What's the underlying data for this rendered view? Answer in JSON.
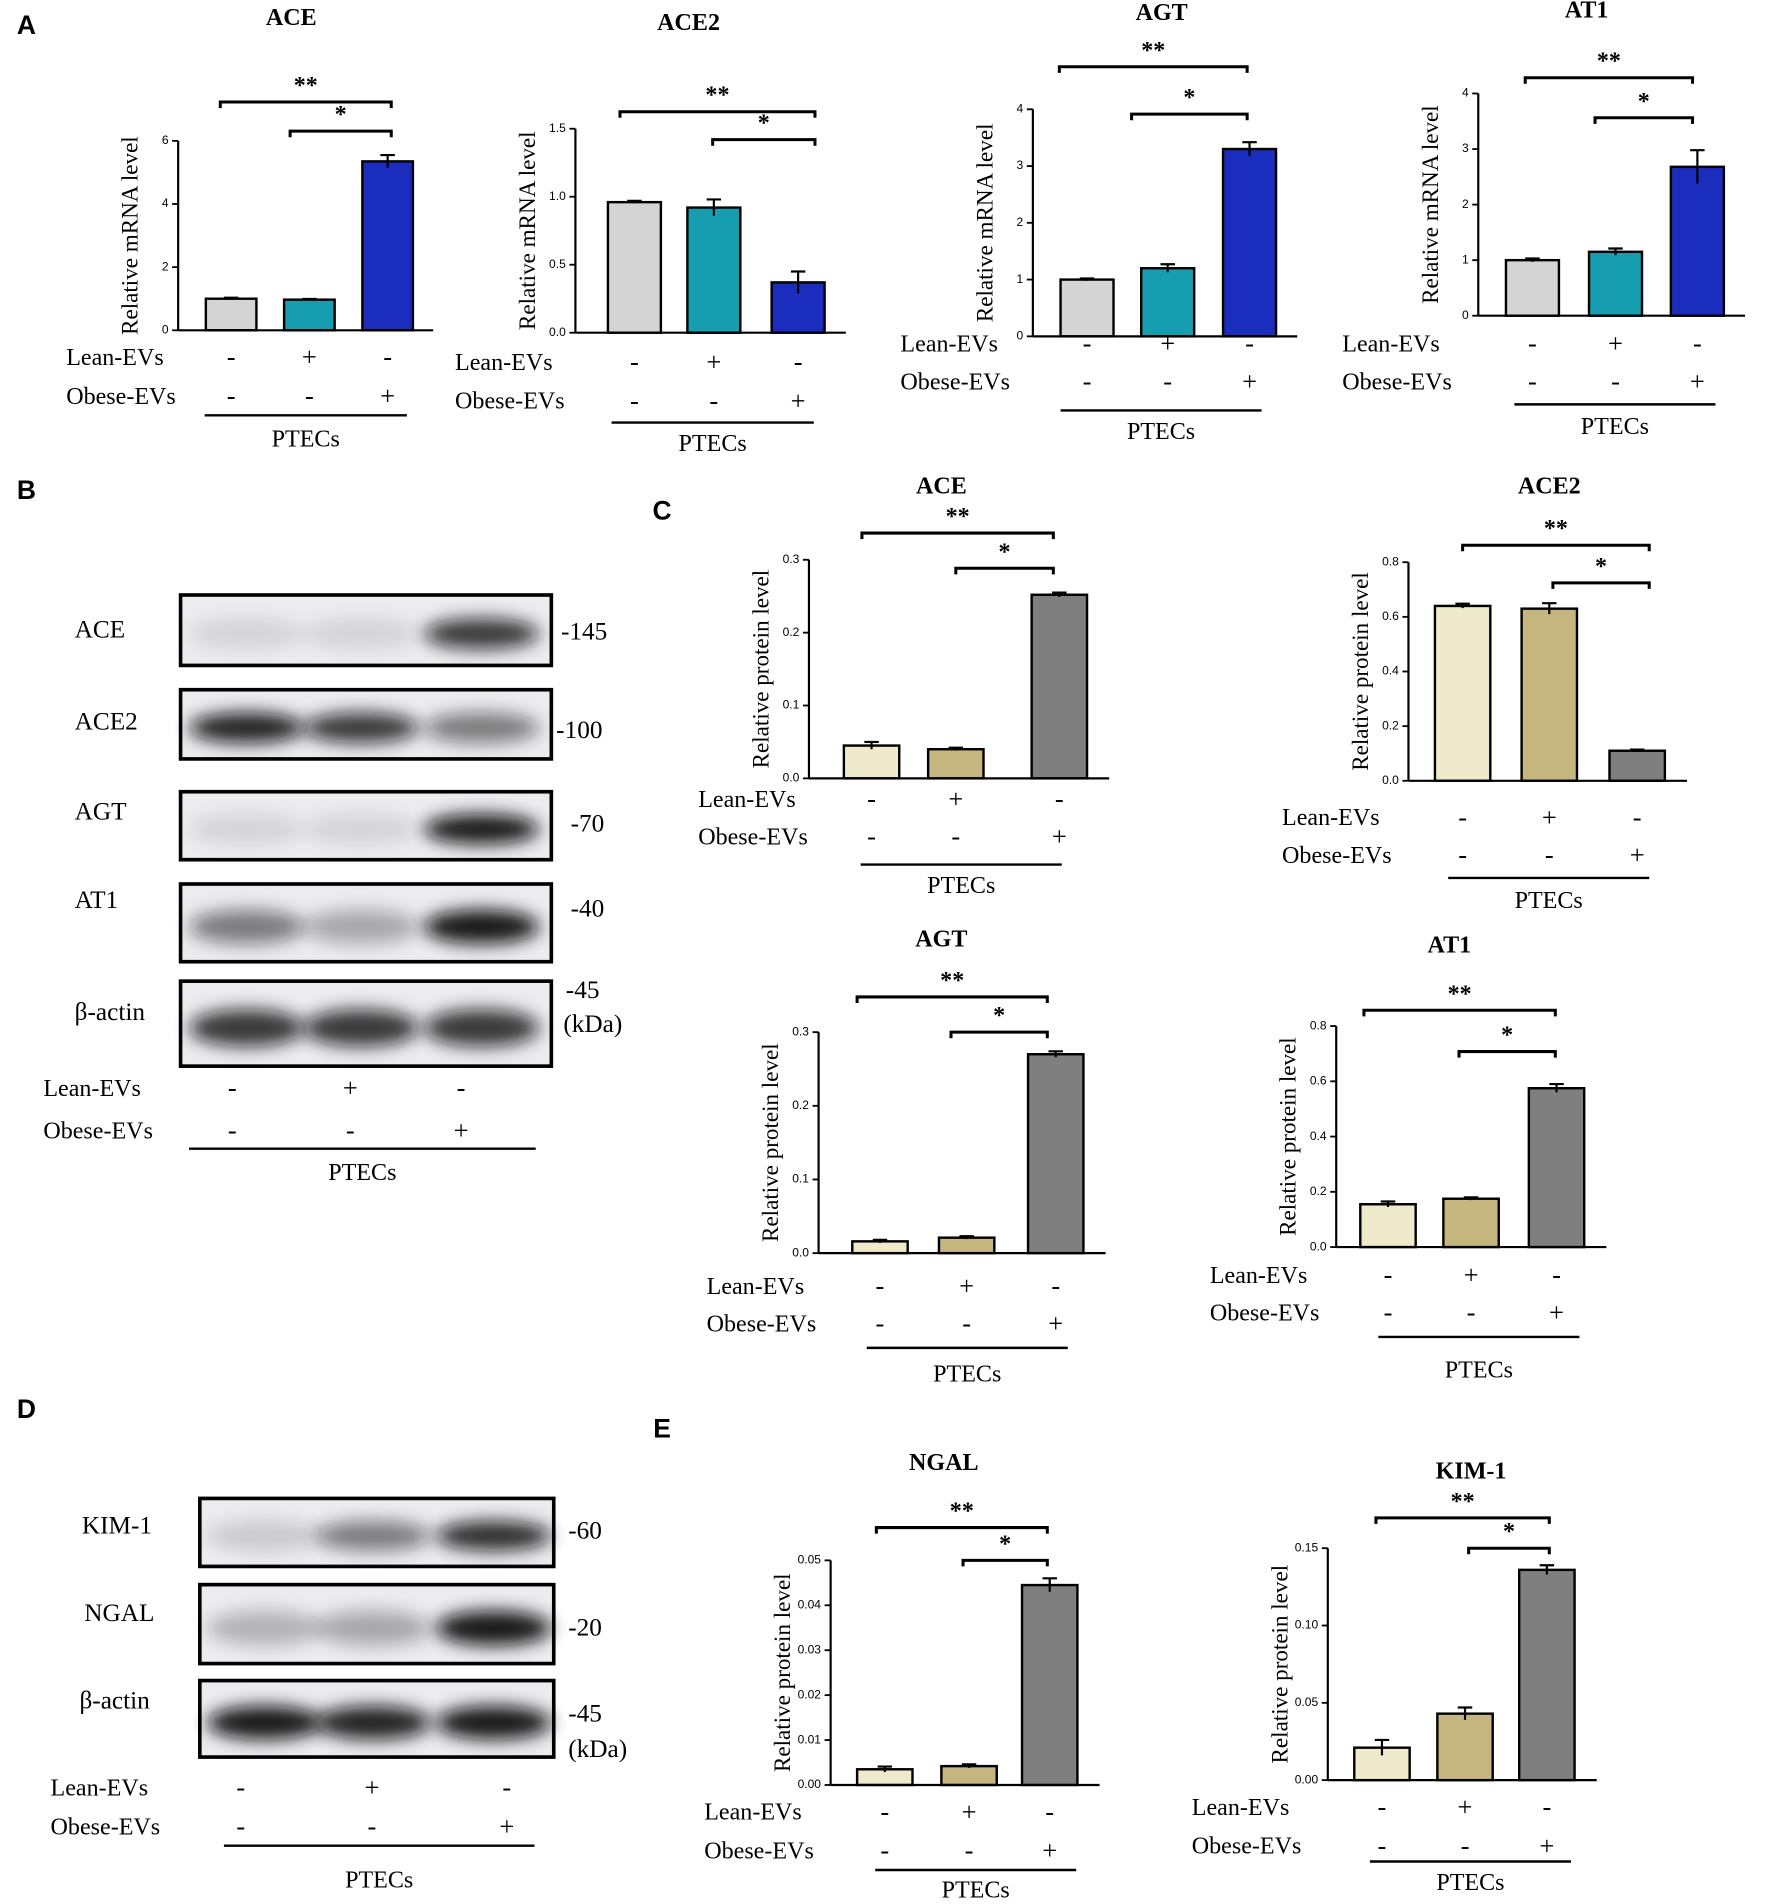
{
  "panels": [
    "A",
    "B",
    "C",
    "D",
    "E"
  ],
  "chart_data": [
    {
      "type": "bar",
      "title": "ACE",
      "y_label": "Relative mRNA level",
      "values": [
        1.0,
        0.97,
        5.35
      ],
      "errors": [
        0.03,
        0.02,
        0.2
      ],
      "colors": [
        "#d4d4d4",
        "#179db0",
        "#1b2dbd"
      ],
      "ylim": [
        0,
        6
      ],
      "yticks": [
        0,
        2,
        4,
        6
      ],
      "significance": [
        "**",
        "*"
      ],
      "treatments": [
        {
          "name": "Lean-EVs",
          "values": [
            "-",
            "+",
            "-"
          ]
        },
        {
          "name": "Obese-EVs",
          "values": [
            "-",
            "-",
            "+"
          ]
        }
      ],
      "group": "PTECs"
    },
    {
      "type": "bar",
      "title": "ACE2",
      "y_label": "Relative mRNA level",
      "values": [
        0.96,
        0.92,
        0.37
      ],
      "errors": [
        0.01,
        0.06,
        0.08
      ],
      "colors": [
        "#d4d4d4",
        "#179db0",
        "#1b2dbd"
      ],
      "ylim": [
        0,
        1.5
      ],
      "yticks": [
        {
          "value": 0,
          "label": "0.0"
        },
        0.5,
        {
          "value": 1,
          "label": "1.0"
        },
        1.5
      ],
      "significance": [
        "**",
        "*"
      ],
      "treatments": [
        {
          "name": "Lean-EVs",
          "values": [
            "-",
            "+",
            "-"
          ]
        },
        {
          "name": "Obese-EVs",
          "values": [
            "-",
            "-",
            "+"
          ]
        }
      ],
      "group": "PTECs"
    },
    {
      "type": "bar",
      "title": "AGT",
      "y_label": "Relative mRNA level",
      "values": [
        1.0,
        1.2,
        3.3
      ],
      "errors": [
        0.02,
        0.07,
        0.12
      ],
      "colors": [
        "#d4d4d4",
        "#179db0",
        "#1b2dbd"
      ],
      "ylim": [
        0,
        4
      ],
      "yticks": [
        0,
        1,
        2,
        3,
        4
      ],
      "significance": [
        "**",
        "*"
      ],
      "treatments": [
        {
          "name": "Lean-EVs",
          "values": [
            "-",
            "+",
            "-"
          ]
        },
        {
          "name": "Obese-EVs",
          "values": [
            "-",
            "-",
            "+"
          ]
        }
      ],
      "group": "PTECs"
    },
    {
      "type": "bar",
      "title": "AT1",
      "y_label": "Relative mRNA level",
      "values": [
        1.0,
        1.15,
        2.68
      ],
      "errors": [
        0.03,
        0.06,
        0.3
      ],
      "colors": [
        "#d4d4d4",
        "#179db0",
        "#1b2dbd"
      ],
      "ylim": [
        0,
        4
      ],
      "yticks": [
        0,
        1,
        2,
        3,
        4
      ],
      "significance": [
        "**",
        "*"
      ],
      "treatments": [
        {
          "name": "Lean-EVs",
          "values": [
            "-",
            "+",
            "-"
          ]
        },
        {
          "name": "Obese-EVs",
          "values": [
            "-",
            "-",
            "+"
          ]
        }
      ],
      "group": "PTECs"
    },
    {
      "type": "bar",
      "title": "ACE",
      "y_label": "Relative protein level",
      "values": [
        0.045,
        0.04,
        0.252
      ],
      "errors": [
        0.005,
        0.002,
        0.003
      ],
      "colors": [
        "#eeeacb",
        "#c4b67e",
        "#7f7f7f"
      ],
      "ylim": [
        0,
        0.3
      ],
      "yticks": [
        {
          "value": 0,
          "label": "0.0"
        },
        0.1,
        0.2,
        0.3
      ],
      "significance": [
        "**",
        "*"
      ],
      "treatments": [
        {
          "name": "Lean-EVs",
          "values": [
            "-",
            "+",
            "-"
          ]
        },
        {
          "name": "Obese-EVs",
          "values": [
            "-",
            "-",
            "+"
          ]
        }
      ],
      "group": "PTECs"
    },
    {
      "type": "bar",
      "title": "ACE2",
      "y_label": "Relative protein level",
      "values": [
        0.64,
        0.63,
        0.11
      ],
      "errors": [
        0.008,
        0.02,
        0.004
      ],
      "colors": [
        "#eeeacb",
        "#c4b67e",
        "#7f7f7f"
      ],
      "ylim": [
        0,
        0.8
      ],
      "yticks": [
        {
          "value": 0,
          "label": "0.0"
        },
        0.2,
        0.4,
        0.6,
        0.8
      ],
      "significance": [
        "**",
        "*"
      ],
      "treatments": [
        {
          "name": "Lean-EVs",
          "values": [
            "-",
            "+",
            "-"
          ]
        },
        {
          "name": "Obese-EVs",
          "values": [
            "-",
            "-",
            "+"
          ]
        }
      ],
      "group": "PTECs"
    },
    {
      "type": "bar",
      "title": "AGT",
      "y_label": "Relative protein level",
      "values": [
        0.016,
        0.021,
        0.27
      ],
      "errors": [
        0.002,
        0.002,
        0.004
      ],
      "colors": [
        "#eeeacb",
        "#c4b67e",
        "#7f7f7f"
      ],
      "ylim": [
        0,
        0.3
      ],
      "yticks": [
        {
          "value": 0,
          "label": "0.0"
        },
        0.1,
        0.2,
        0.3
      ],
      "significance": [
        "**",
        "*"
      ],
      "treatments": [
        {
          "name": "Lean-EVs",
          "values": [
            "-",
            "+",
            "-"
          ]
        },
        {
          "name": "Obese-EVs",
          "values": [
            "-",
            "-",
            "+"
          ]
        }
      ],
      "group": "PTECs"
    },
    {
      "type": "bar",
      "title": "AT1",
      "y_label": "Relative protein level",
      "values": [
        0.155,
        0.175,
        0.575
      ],
      "errors": [
        0.01,
        0.005,
        0.015
      ],
      "colors": [
        "#eeeacb",
        "#c4b67e",
        "#7f7f7f"
      ],
      "ylim": [
        0,
        0.8
      ],
      "yticks": [
        {
          "value": 0,
          "label": "0.0"
        },
        0.2,
        0.4,
        0.6,
        0.8
      ],
      "significance": [
        "**",
        "*"
      ],
      "treatments": [
        {
          "name": "Lean-EVs",
          "values": [
            "-",
            "+",
            "-"
          ]
        },
        {
          "name": "Obese-EVs",
          "values": [
            "-",
            "-",
            "+"
          ]
        }
      ],
      "group": "PTECs"
    },
    {
      "type": "bar",
      "title": "NGAL",
      "y_label": "Relative protein level",
      "values": [
        0.0035,
        0.0042,
        0.0445
      ],
      "errors": [
        0.0006,
        0.0004,
        0.0015
      ],
      "colors": [
        "#eeeacb",
        "#c4b67e",
        "#7f7f7f"
      ],
      "ylim": [
        0,
        0.05
      ],
      "yticks": [
        {
          "value": 0,
          "label": "0.00"
        },
        0.01,
        0.02,
        0.03,
        0.04,
        0.05
      ],
      "significance": [
        "**",
        "*"
      ],
      "treatments": [
        {
          "name": "Lean-EVs",
          "values": [
            "-",
            "+",
            "-"
          ]
        },
        {
          "name": "Obese-EVs",
          "values": [
            "-",
            "-",
            "+"
          ]
        }
      ],
      "group": "PTECs"
    },
    {
      "type": "bar",
      "title": "KIM-1",
      "y_label": "Relative protein level",
      "values": [
        0.021,
        0.043,
        0.136
      ],
      "errors": [
        0.005,
        0.004,
        0.003
      ],
      "colors": [
        "#eeeacb",
        "#c4b67e",
        "#7f7f7f"
      ],
      "ylim": [
        0,
        0.15
      ],
      "yticks": [
        {
          "value": 0,
          "label": "0.00"
        },
        0.05,
        {
          "value": 0.1,
          "label": "0.10"
        },
        0.15
      ],
      "significance": [
        "**",
        "*"
      ],
      "treatments": [
        {
          "name": "Lean-EVs",
          "values": [
            "-",
            "+",
            "-"
          ]
        },
        {
          "name": "Obese-EVs",
          "values": [
            "-",
            "-",
            "+"
          ]
        }
      ],
      "group": "PTECs"
    }
  ],
  "blots": [
    {
      "rows": [
        {
          "label": "ACE",
          "size": "-145"
        },
        {
          "label": "ACE2",
          "size": "-100"
        },
        {
          "label": "AGT",
          "size": "-70"
        },
        {
          "label": "AT1",
          "size": "-40"
        },
        {
          "label": "β-actin",
          "size": "-45"
        }
      ],
      "unit": "(kDa)",
      "treatments": [
        {
          "name": "Lean-EVs",
          "values": [
            "-",
            "+",
            "-"
          ]
        },
        {
          "name": "Obese-EVs",
          "values": [
            "-",
            "-",
            "+"
          ]
        }
      ],
      "group": "PTECs"
    },
    {
      "rows": [
        {
          "label": "KIM-1",
          "size": "-60"
        },
        {
          "label": "NGAL",
          "size": "-20"
        },
        {
          "label": "β-actin",
          "size": "-45"
        }
      ],
      "unit": "(kDa)",
      "treatments": [
        {
          "name": "Lean-EVs",
          "values": [
            "-",
            "+",
            "-"
          ]
        },
        {
          "name": "Obese-EVs",
          "values": [
            "-",
            "-",
            "+"
          ]
        }
      ],
      "group": "PTECs"
    }
  ]
}
